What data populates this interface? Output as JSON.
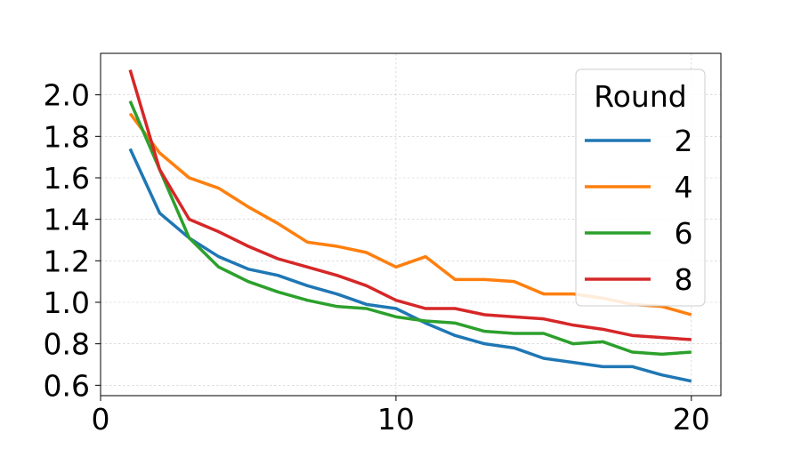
{
  "chart_data": {
    "type": "line",
    "x": [
      1,
      2,
      3,
      4,
      5,
      6,
      7,
      8,
      9,
      10,
      11,
      12,
      13,
      14,
      15,
      16,
      17,
      18,
      19,
      20
    ],
    "xlim": [
      0,
      21
    ],
    "ylim": [
      0.55,
      2.2
    ],
    "xticks": [
      "0",
      "10",
      "20"
    ],
    "yticks": [
      "0.6",
      "0.8",
      "1.0",
      "1.2",
      "1.4",
      "1.6",
      "1.8",
      "2.0"
    ],
    "grid": true,
    "legend": {
      "title": "Round",
      "placement": "top-right"
    },
    "series": [
      {
        "name": "2",
        "color": "#1f77b4",
        "values": [
          1.74,
          1.43,
          1.31,
          1.22,
          1.16,
          1.13,
          1.08,
          1.04,
          0.99,
          0.97,
          0.9,
          0.84,
          0.8,
          0.78,
          0.73,
          0.71,
          0.69,
          0.69,
          0.65,
          0.62
        ]
      },
      {
        "name": "4",
        "color": "#ff7f0e",
        "values": [
          1.91,
          1.72,
          1.6,
          1.55,
          1.46,
          1.38,
          1.29,
          1.27,
          1.24,
          1.17,
          1.22,
          1.11,
          1.11,
          1.1,
          1.04,
          1.04,
          1.02,
          0.99,
          0.98,
          0.94
        ]
      },
      {
        "name": "6",
        "color": "#2ca02c",
        "values": [
          1.97,
          1.64,
          1.31,
          1.17,
          1.1,
          1.05,
          1.01,
          0.98,
          0.97,
          0.93,
          0.91,
          0.9,
          0.86,
          0.85,
          0.85,
          0.8,
          0.81,
          0.76,
          0.75,
          0.76
        ]
      },
      {
        "name": "8",
        "color": "#d62728",
        "values": [
          2.12,
          1.64,
          1.4,
          1.34,
          1.27,
          1.21,
          1.17,
          1.13,
          1.08,
          1.01,
          0.97,
          0.97,
          0.94,
          0.93,
          0.92,
          0.89,
          0.87,
          0.84,
          0.83,
          0.82
        ]
      }
    ]
  }
}
